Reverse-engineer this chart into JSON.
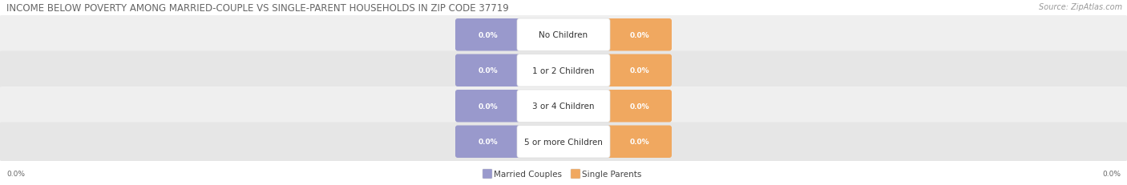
{
  "title": "INCOME BELOW POVERTY AMONG MARRIED-COUPLE VS SINGLE-PARENT HOUSEHOLDS IN ZIP CODE 37719",
  "source": "Source: ZipAtlas.com",
  "categories": [
    "No Children",
    "1 or 2 Children",
    "3 or 4 Children",
    "5 or more Children"
  ],
  "married_values": [
    0.0,
    0.0,
    0.0,
    0.0
  ],
  "single_values": [
    0.0,
    0.0,
    0.0,
    0.0
  ],
  "married_color": "#9999cc",
  "single_color": "#f0a860",
  "married_label": "Married Couples",
  "single_label": "Single Parents",
  "row_bg_colors": [
    "#efefef",
    "#e6e6e6",
    "#efefef",
    "#e6e6e6"
  ],
  "axis_label_left": "0.0%",
  "axis_label_right": "0.0%",
  "title_fontsize": 8.5,
  "source_fontsize": 7,
  "category_fontsize": 7.5,
  "value_fontsize": 6.5,
  "legend_fontsize": 7.5
}
